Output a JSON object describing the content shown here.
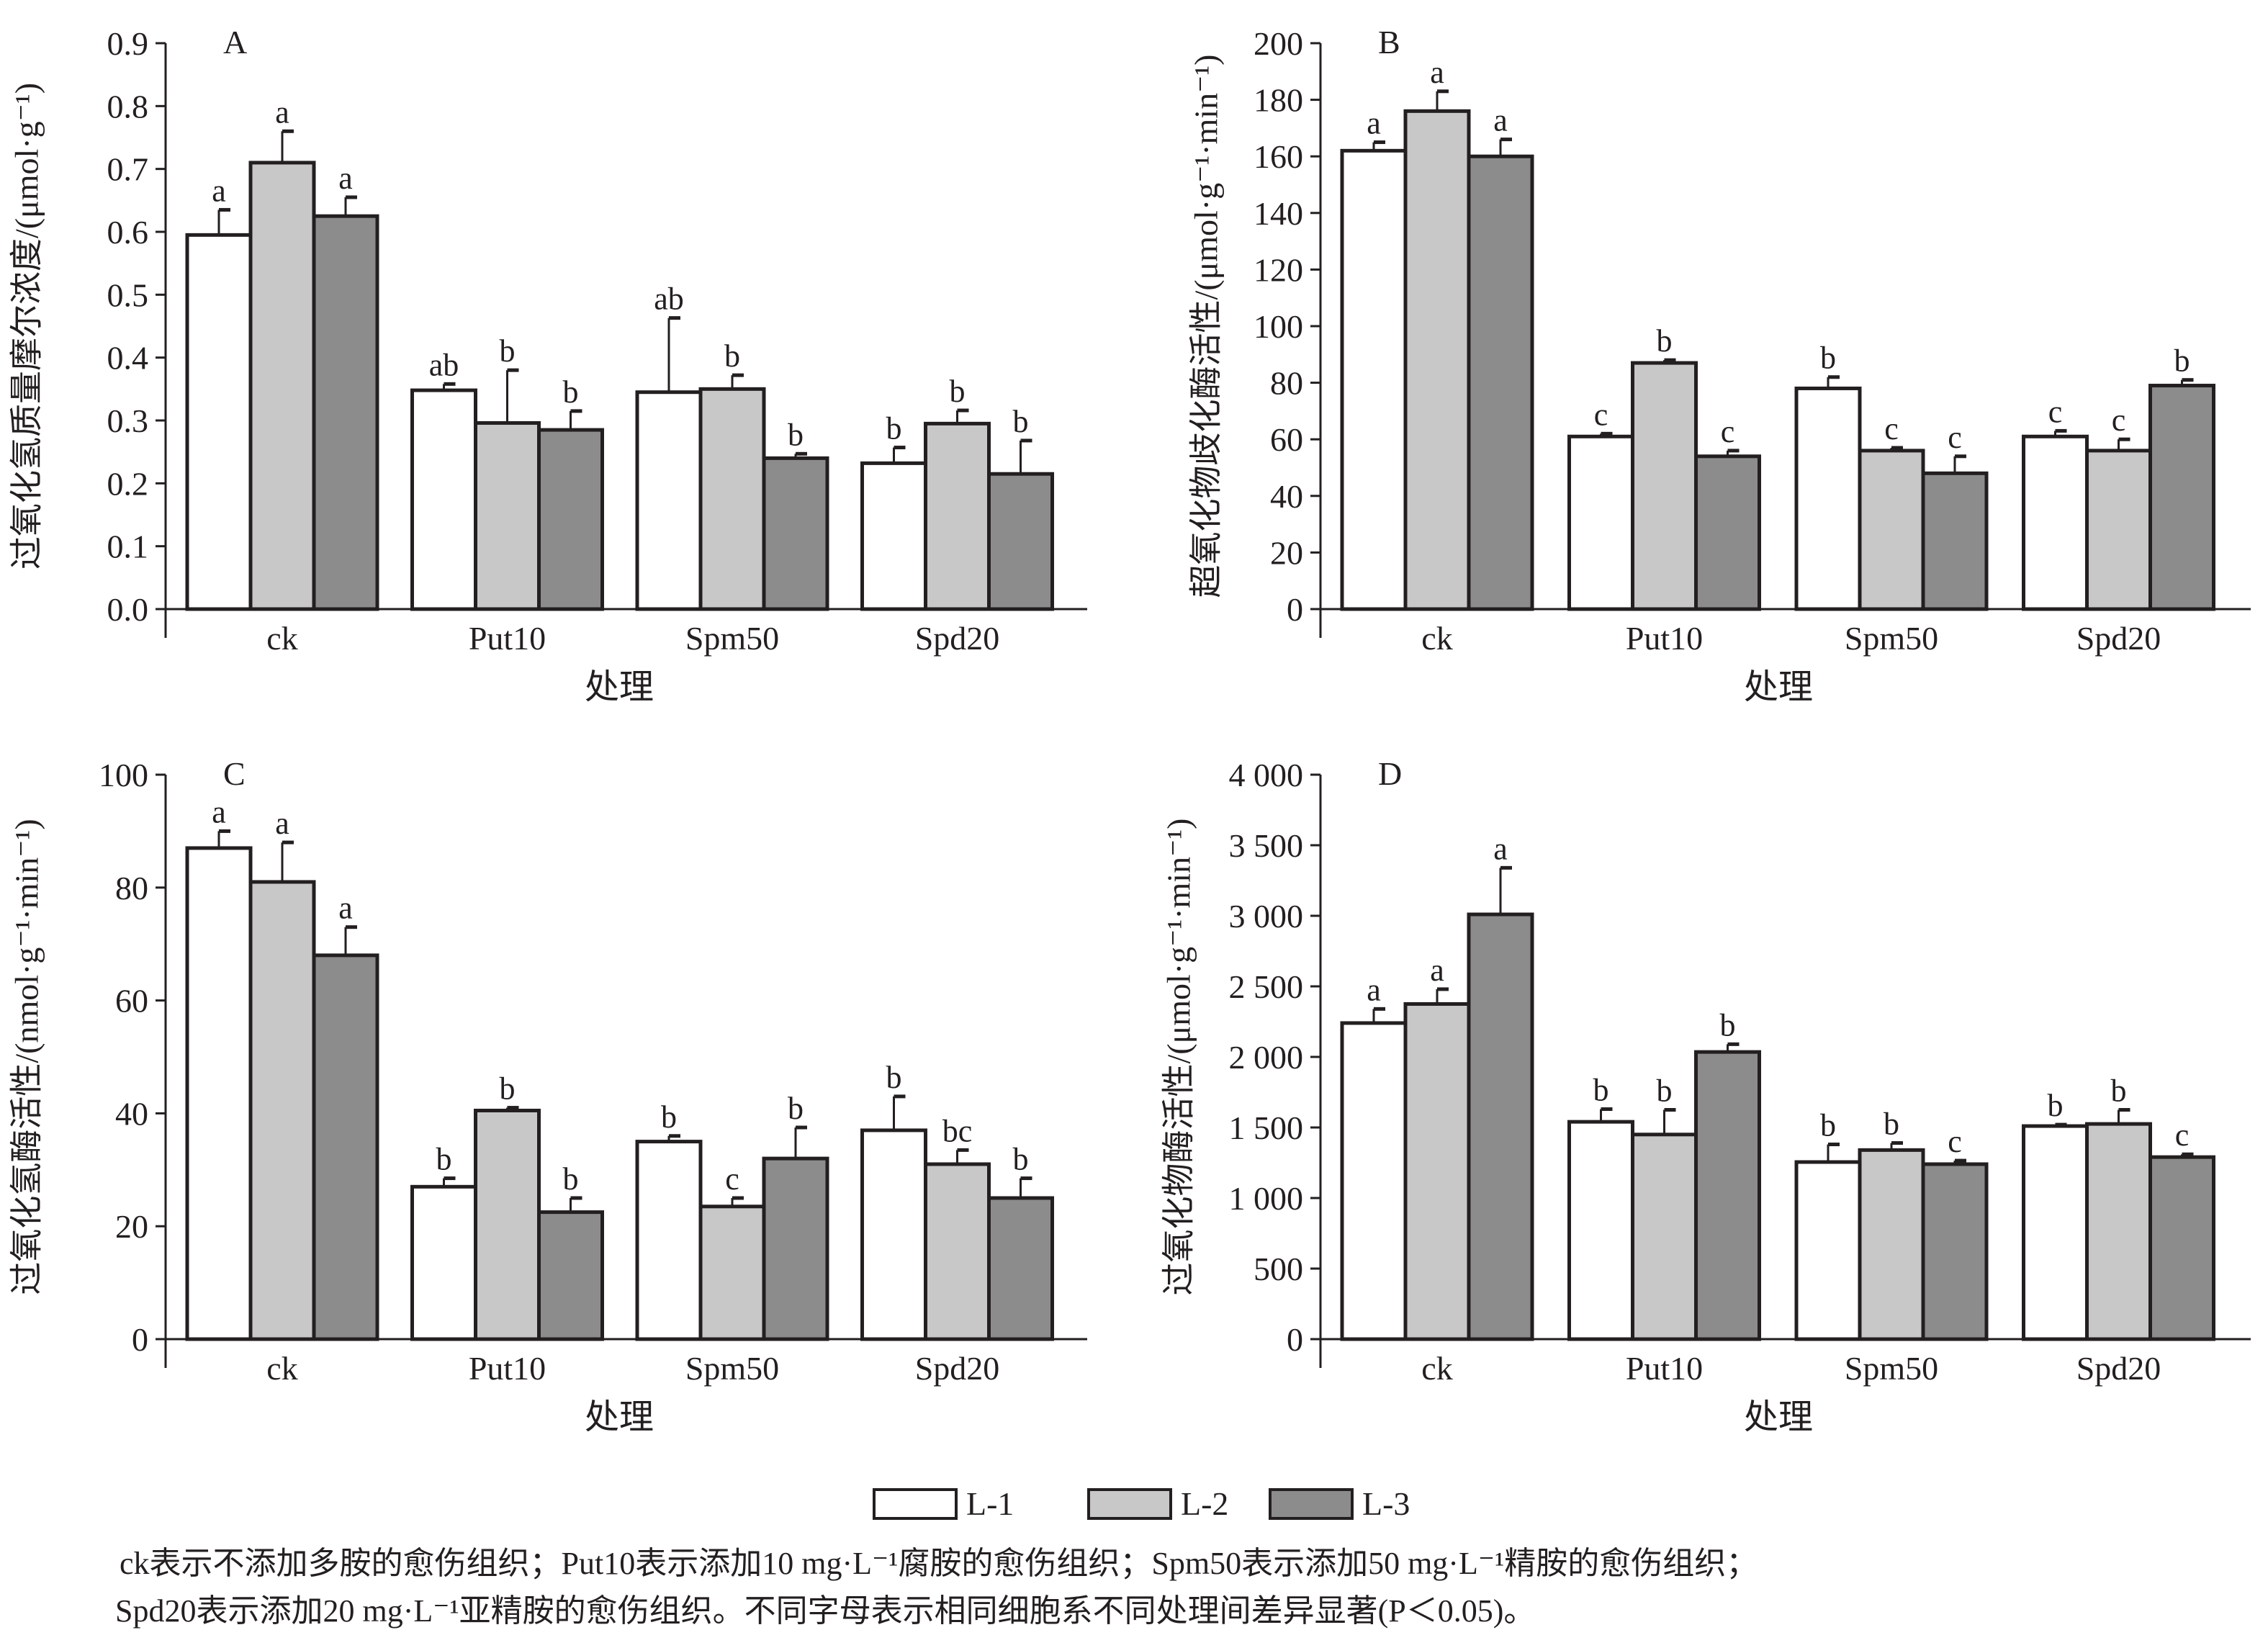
{
  "legend": [
    {
      "label": "L-1",
      "color": "#ffffff"
    },
    {
      "label": "L-2",
      "color": "#c8c8c8"
    },
    {
      "label": "L-3",
      "color": "#8c8c8c"
    }
  ],
  "caption": {
    "line1": "ck表示不添加多胺的愈伤组织；Put10表示添加10 mg·L⁻¹腐胺的愈伤组织；Spm50表示添加50 mg·L⁻¹精胺的愈伤组织；",
    "line2": "Spd20表示添加20 mg·L⁻¹亚精胺的愈伤组织。不同字母表示相同细胞系不同处理间差异显著(P＜0.05)。"
  },
  "chart_data": [
    {
      "type": "bar",
      "panel": "A",
      "ylabel": "过氧化氢质量摩尔浓度/(μmol·g⁻¹)",
      "xlabel": "处理",
      "categories": [
        "ck",
        "Put10",
        "Spm50",
        "Spd20"
      ],
      "ylim": [
        0,
        0.9
      ],
      "yticks": [
        "0.0",
        "0.1",
        "0.2",
        "0.3",
        "0.4",
        "0.5",
        "0.6",
        "0.7",
        "0.8",
        "0.9"
      ],
      "series": [
        {
          "name": "L-1",
          "values": [
            0.595,
            0.348,
            0.345,
            0.232
          ],
          "error_top": [
            0.635,
            0.358,
            0.463,
            0.257
          ],
          "letters": [
            "a",
            "ab",
            "ab",
            "b"
          ]
        },
        {
          "name": "L-2",
          "values": [
            0.71,
            0.296,
            0.35,
            0.295
          ],
          "error_top": [
            0.76,
            0.38,
            0.372,
            0.316
          ],
          "letters": [
            "a",
            "b",
            "b",
            "b"
          ]
        },
        {
          "name": "L-3",
          "values": [
            0.625,
            0.285,
            0.24,
            0.215
          ],
          "error_top": [
            0.655,
            0.315,
            0.247,
            0.268
          ],
          "letters": [
            "a",
            "b",
            "b",
            "b"
          ]
        }
      ]
    },
    {
      "type": "bar",
      "panel": "B",
      "ylabel": "超氧化物歧化酶活性/(μmol·g⁻¹·min⁻¹)",
      "xlabel": "处理",
      "categories": [
        "ck",
        "Put10",
        "Spm50",
        "Spd20"
      ],
      "ylim": [
        0,
        200
      ],
      "yticks": [
        "0",
        "20",
        "40",
        "60",
        "80",
        "100",
        "120",
        "140",
        "160",
        "180",
        "200"
      ],
      "series": [
        {
          "name": "L-1",
          "values": [
            162,
            61,
            78,
            61
          ],
          "error_top": [
            165,
            62,
            82,
            63
          ],
          "letters": [
            "a",
            "c",
            "b",
            "c"
          ]
        },
        {
          "name": "L-2",
          "values": [
            176,
            87,
            56,
            56
          ],
          "error_top": [
            183,
            88,
            57,
            60
          ],
          "letters": [
            "a",
            "b",
            "c",
            "c"
          ]
        },
        {
          "name": "L-3",
          "values": [
            160,
            54,
            48,
            79
          ],
          "error_top": [
            166,
            56,
            54,
            81
          ],
          "letters": [
            "a",
            "c",
            "c",
            "b"
          ]
        }
      ]
    },
    {
      "type": "bar",
      "panel": "C",
      "ylabel": "过氧化氢酶活性/(nmol·g⁻¹·min⁻¹)",
      "xlabel": "处理",
      "categories": [
        "ck",
        "Put10",
        "Spm50",
        "Spd20"
      ],
      "ylim": [
        0,
        100
      ],
      "yticks": [
        "0",
        "20",
        "40",
        "60",
        "80",
        "100"
      ],
      "series": [
        {
          "name": "L-1",
          "values": [
            87,
            27,
            35,
            37
          ],
          "error_top": [
            90,
            28.5,
            36,
            43
          ],
          "letters": [
            "a",
            "b",
            "b",
            "b"
          ]
        },
        {
          "name": "L-2",
          "values": [
            81,
            40.5,
            23.5,
            31
          ],
          "error_top": [
            88,
            41,
            25,
            33.5
          ],
          "letters": [
            "a",
            "b",
            "c",
            "bc"
          ]
        },
        {
          "name": "L-3",
          "values": [
            68,
            22.5,
            32,
            25
          ],
          "error_top": [
            73,
            25,
            37.5,
            28.5
          ],
          "letters": [
            "a",
            "b",
            "b",
            "b"
          ]
        }
      ]
    },
    {
      "type": "bar",
      "panel": "D",
      "ylabel": "过氧化物酶活性/(μmol·g⁻¹·min⁻¹)",
      "xlabel": "处理",
      "categories": [
        "ck",
        "Put10",
        "Spm50",
        "Spd20"
      ],
      "ylim": [
        0,
        4000
      ],
      "yticks": [
        "0",
        "500",
        "1 000",
        "1 500",
        "2 000",
        "2 500",
        "3 000",
        "3 500",
        "4 000"
      ],
      "series": [
        {
          "name": "L-1",
          "values": [
            2240,
            1540,
            1255,
            1510
          ],
          "error_top": [
            2340,
            1630,
            1380,
            1520
          ],
          "letters": [
            "a",
            "b",
            "b",
            "b"
          ]
        },
        {
          "name": "L-2",
          "values": [
            2375,
            1450,
            1340,
            1525
          ],
          "error_top": [
            2480,
            1625,
            1390,
            1625
          ],
          "letters": [
            "a",
            "b",
            "b",
            "b"
          ]
        },
        {
          "name": "L-3",
          "values": [
            3010,
            2035,
            1240,
            1290
          ],
          "error_top": [
            3340,
            2090,
            1265,
            1310
          ],
          "letters": [
            "a",
            "b",
            "c",
            "c"
          ]
        }
      ]
    }
  ]
}
